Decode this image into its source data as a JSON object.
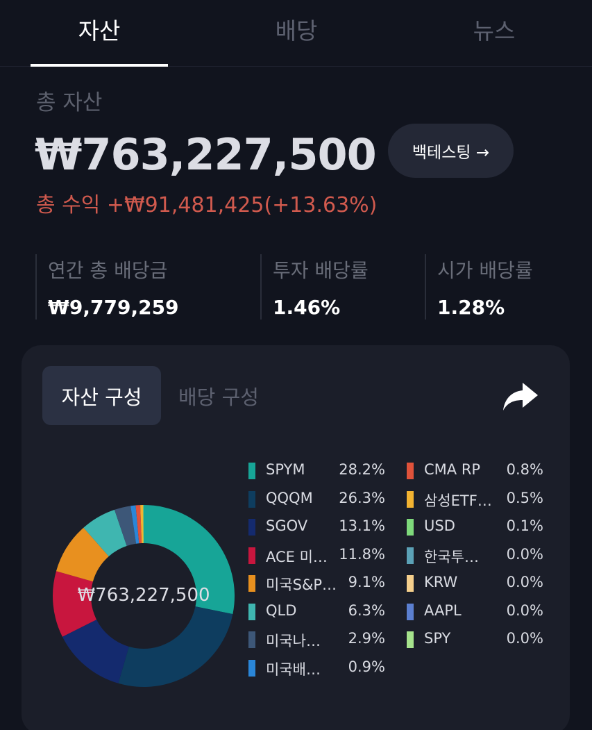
{
  "tabs": [
    {
      "label": "자산",
      "active": true
    },
    {
      "label": "배당",
      "active": false
    },
    {
      "label": "뉴스",
      "active": false
    }
  ],
  "summary": {
    "total_label": "총 자산",
    "total_value": "₩763,227,500",
    "backtest_label": "백테스팅 →",
    "profit_text": "총 수익 +₩91,481,425(+13.63%)"
  },
  "stats": [
    {
      "label": "연간 총 배당금",
      "value": "₩9,779,259"
    },
    {
      "label": "투자 배당률",
      "value": "1.46%"
    },
    {
      "label": "시가 배당률",
      "value": "1.28%"
    }
  ],
  "composition": {
    "segment_active": "자산 구성",
    "segment_inactive": "배당 구성",
    "share_icon": "share-icon",
    "center_text": "₩763,227,500"
  },
  "chart_data": {
    "type": "pie",
    "donut": true,
    "center_label": "₩763,227,500",
    "slices": [
      {
        "name": "SPYM",
        "label": "SPYM",
        "pct_label": "28.2%",
        "value": 28.2,
        "color": "#17a597"
      },
      {
        "name": "QQQM",
        "label": "QQQM",
        "pct_label": "26.3%",
        "value": 26.3,
        "color": "#0e3d5f"
      },
      {
        "name": "SGOV",
        "label": "SGOV",
        "pct_label": "13.1%",
        "value": 13.1,
        "color": "#142a6e"
      },
      {
        "name": "ACE 미…",
        "label": "ACE 미…",
        "pct_label": "11.8%",
        "value": 11.8,
        "color": "#c8163e"
      },
      {
        "name": "미국S&P…",
        "label": "미국S&P…",
        "pct_label": "9.1%",
        "value": 9.1,
        "color": "#e8901f"
      },
      {
        "name": "QLD",
        "label": "QLD",
        "pct_label": "6.3%",
        "value": 6.3,
        "color": "#3fb6b0"
      },
      {
        "name": "미국나…",
        "label": "미국나…",
        "pct_label": "2.9%",
        "value": 2.9,
        "color": "#3d5778"
      },
      {
        "name": "미국배…",
        "label": "미국배…",
        "pct_label": "0.9%",
        "value": 0.9,
        "color": "#2a86d8"
      },
      {
        "name": "CMA RP",
        "label": "CMA RP",
        "pct_label": "0.8%",
        "value": 0.8,
        "color": "#e0523a"
      },
      {
        "name": "삼성ETF…",
        "label": "삼성ETF…",
        "pct_label": "0.5%",
        "value": 0.5,
        "color": "#f2b331"
      },
      {
        "name": "USD",
        "label": "USD",
        "pct_label": "0.1%",
        "value": 0.1,
        "color": "#7ed97b"
      },
      {
        "name": "한국투…",
        "label": "한국투…",
        "pct_label": "0.0%",
        "value": 0.0,
        "color": "#5ba1b6"
      },
      {
        "name": "KRW",
        "label": "KRW",
        "pct_label": "0.0%",
        "value": 0.0,
        "color": "#f5cf8c"
      },
      {
        "name": "AAPL",
        "label": "AAPL",
        "pct_label": "0.0%",
        "value": 0.0,
        "color": "#5b7fd0"
      },
      {
        "name": "SPY",
        "label": "SPY",
        "pct_label": "0.0%",
        "value": 0.0,
        "color": "#a6e38c"
      }
    ]
  }
}
